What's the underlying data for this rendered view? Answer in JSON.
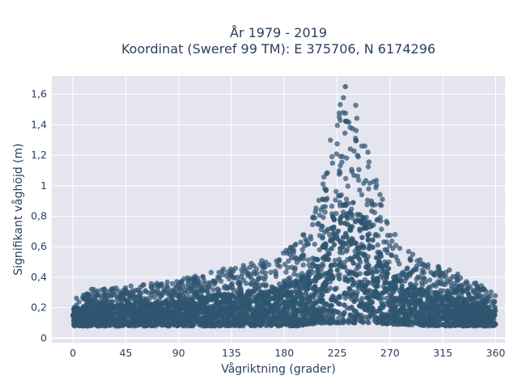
{
  "chart_data": {
    "type": "scatter",
    "title": "År 1979 - 2019",
    "subtitle": "Koordinat (Sweref 99 TM): E 375706, N 6174296",
    "xlabel": "Vågriktning (grader)",
    "ylabel": "Signifikant våghöjd (m)",
    "xlim": [
      -18,
      368
    ],
    "ylim": [
      -0.03,
      1.72
    ],
    "x_ticks": [
      0,
      45,
      90,
      135,
      180,
      225,
      270,
      315,
      360
    ],
    "x_tick_labels": [
      "0",
      "45",
      "90",
      "135",
      "180",
      "225",
      "270",
      "315",
      "360"
    ],
    "y_ticks": [
      0,
      0.2,
      0.4,
      0.6,
      0.8,
      1.0,
      1.2,
      1.4,
      1.6
    ],
    "y_tick_labels": [
      "0",
      "0,2",
      "0,4",
      "0,6",
      "0,8",
      "1",
      "1,2",
      "1,4",
      "1,6"
    ],
    "grid": true,
    "marker_color": "#2f5570",
    "background_color": "#e5e5f0",
    "envelope": {
      "direction": [
        0,
        20,
        45,
        90,
        120,
        150,
        170,
        190,
        200,
        210,
        220,
        230,
        240,
        250,
        260,
        270,
        280,
        300,
        320,
        340,
        360
      ],
      "min_height": [
        0.08,
        0.08,
        0.08,
        0.08,
        0.08,
        0.08,
        0.08,
        0.08,
        0.09,
        0.1,
        0.1,
        0.1,
        0.1,
        0.1,
        0.1,
        0.09,
        0.09,
        0.08,
        0.08,
        0.08,
        0.08
      ],
      "max_height": [
        0.3,
        0.33,
        0.34,
        0.38,
        0.45,
        0.5,
        0.52,
        0.62,
        0.72,
        0.95,
        1.35,
        1.6,
        1.55,
        1.3,
        1.0,
        0.75,
        0.6,
        0.5,
        0.45,
        0.38,
        0.3
      ]
    },
    "peak": {
      "direction": 232,
      "height": 1.65
    }
  }
}
